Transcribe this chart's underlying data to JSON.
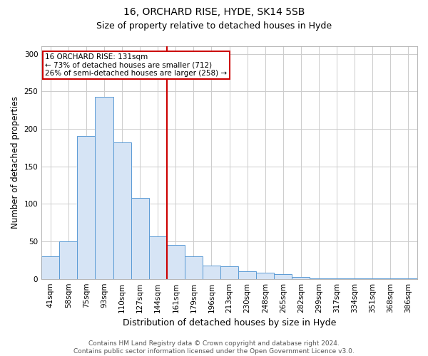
{
  "title1": "16, ORCHARD RISE, HYDE, SK14 5SB",
  "title2": "Size of property relative to detached houses in Hyde",
  "xlabel": "Distribution of detached houses by size in Hyde",
  "ylabel": "Number of detached properties",
  "categories": [
    "41sqm",
    "58sqm",
    "75sqm",
    "93sqm",
    "110sqm",
    "127sqm",
    "144sqm",
    "161sqm",
    "179sqm",
    "196sqm",
    "213sqm",
    "230sqm",
    "248sqm",
    "265sqm",
    "282sqm",
    "299sqm",
    "317sqm",
    "334sqm",
    "351sqm",
    "368sqm",
    "386sqm"
  ],
  "values": [
    30,
    50,
    190,
    243,
    182,
    108,
    57,
    45,
    30,
    18,
    17,
    10,
    8,
    6,
    3,
    1,
    1,
    1,
    1,
    1,
    1
  ],
  "bar_color": "#d6e4f5",
  "bar_edge_color": "#5b9bd5",
  "red_line_x": 6.5,
  "annotation_text": "16 ORCHARD RISE: 131sqm\n← 73% of detached houses are smaller (712)\n26% of semi-detached houses are larger (258) →",
  "annotation_box_color": "#ffffff",
  "annotation_box_edge": "#cc0000",
  "red_line_color": "#cc0000",
  "footnote": "Contains HM Land Registry data © Crown copyright and database right 2024.\nContains public sector information licensed under the Open Government Licence v3.0.",
  "ylim": [
    0,
    310
  ],
  "yticks": [
    0,
    50,
    100,
    150,
    200,
    250,
    300
  ],
  "grid_color": "#cccccc",
  "title1_fontsize": 10,
  "title2_fontsize": 9,
  "xlabel_fontsize": 9,
  "ylabel_fontsize": 8.5,
  "tick_fontsize": 7.5,
  "footnote_fontsize": 6.5
}
